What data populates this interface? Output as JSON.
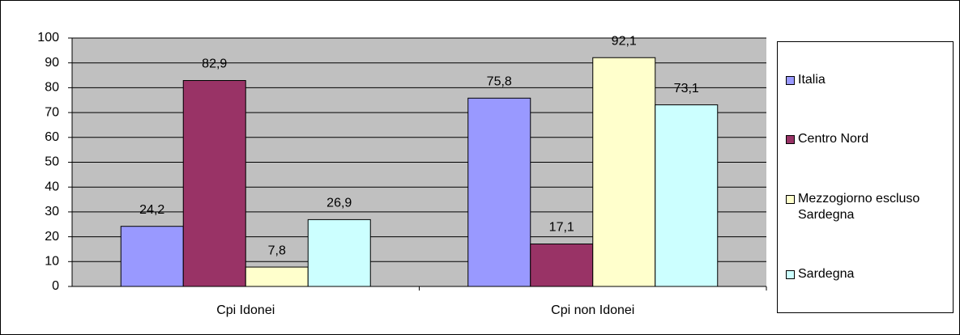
{
  "chart_data": {
    "type": "bar",
    "categories": [
      "Cpi Idonei",
      "Cpi non Idonei"
    ],
    "series": [
      {
        "name": "Italia",
        "color": "#9999ff",
        "values": [
          24.2,
          75.8
        ],
        "value_labels": [
          "24,2",
          "75,8"
        ]
      },
      {
        "name": "Centro Nord",
        "color": "#993366",
        "values": [
          82.9,
          17.1
        ],
        "value_labels": [
          "82,9",
          "17,1"
        ]
      },
      {
        "name": "Mezzogiorno escluso Sardegna",
        "color": "#ffffcc",
        "values": [
          7.8,
          92.1
        ],
        "value_labels": [
          "7,8",
          "92,1"
        ]
      },
      {
        "name": "Sardegna",
        "color": "#ccffff",
        "values": [
          26.9,
          73.1
        ],
        "value_labels": [
          "26,9",
          "73,1"
        ]
      }
    ],
    "ylim": [
      0,
      100
    ],
    "yticks": [
      0,
      10,
      20,
      30,
      40,
      50,
      60,
      70,
      80,
      90,
      100
    ],
    "grid": true,
    "plot_background": "#c0c0c0",
    "legend": "right"
  }
}
